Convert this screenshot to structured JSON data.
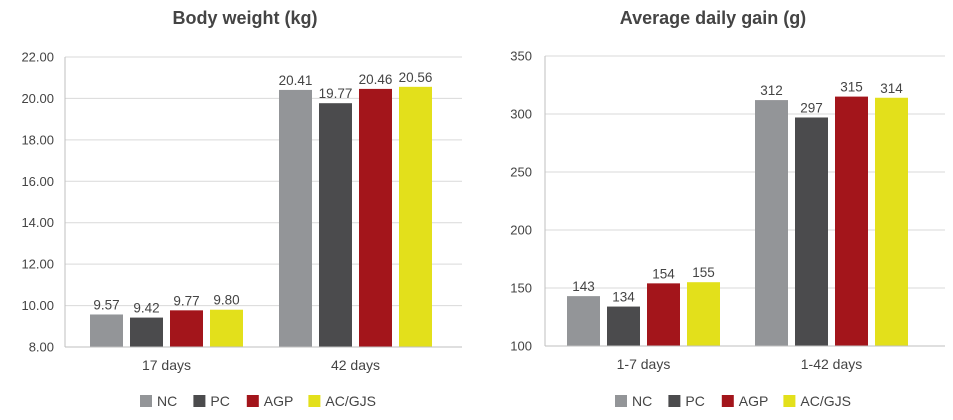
{
  "colors": {
    "NC": "#939598",
    "PC": "#4b4b4d",
    "AGP": "#a3151b",
    "AC/GJS": "#e3e01b"
  },
  "chart_data": [
    {
      "type": "bar",
      "title": "Body weight (kg)",
      "xlabel": "",
      "ylabel": "",
      "categories": [
        "17 days",
        "42 days"
      ],
      "ylim": [
        8.0,
        22.0
      ],
      "yticks": [
        "8.00",
        "10.00",
        "12.00",
        "14.00",
        "16.00",
        "18.00",
        "20.00",
        "22.00"
      ],
      "grid": true,
      "legend": "bottom",
      "series": [
        {
          "name": "NC",
          "values": [
            9.57,
            20.41
          ],
          "labels": [
            "9.57",
            "20.41"
          ]
        },
        {
          "name": "PC",
          "values": [
            9.42,
            19.77
          ],
          "labels": [
            "9.42",
            "19.77"
          ]
        },
        {
          "name": "AGP",
          "values": [
            9.77,
            20.46
          ],
          "labels": [
            "9.77",
            "20.46"
          ]
        },
        {
          "name": "AC/GJS",
          "values": [
            9.8,
            20.56
          ],
          "labels": [
            "9.80",
            "20.56"
          ]
        }
      ]
    },
    {
      "type": "bar",
      "title": "Average daily gain (g)",
      "xlabel": "",
      "ylabel": "",
      "categories": [
        "1-7 days",
        "1-42 days"
      ],
      "ylim": [
        100,
        350
      ],
      "yticks": [
        "100",
        "150",
        "200",
        "250",
        "300",
        "350"
      ],
      "grid": true,
      "legend": "bottom",
      "series": [
        {
          "name": "NC",
          "values": [
            143,
            312
          ],
          "labels": [
            "143",
            "312"
          ]
        },
        {
          "name": "PC",
          "values": [
            134,
            297
          ],
          "labels": [
            "134",
            "297"
          ]
        },
        {
          "name": "AGP",
          "values": [
            154,
            315
          ],
          "labels": [
            "154",
            "315"
          ]
        },
        {
          "name": "AC/GJS",
          "values": [
            155,
            314
          ],
          "labels": [
            "155",
            "314"
          ]
        }
      ]
    }
  ]
}
